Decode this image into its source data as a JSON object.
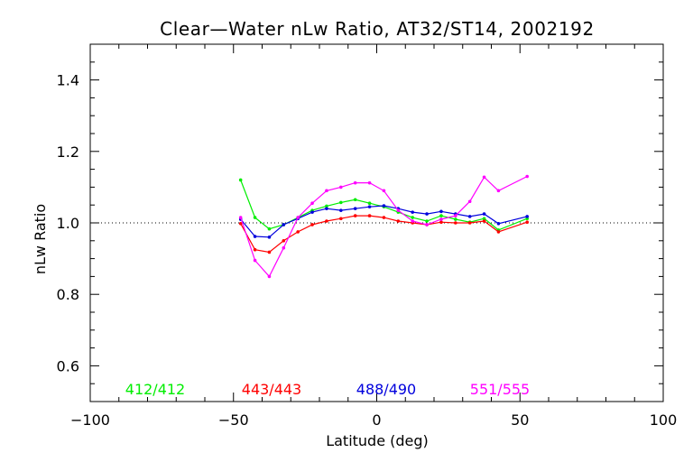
{
  "chart_data": {
    "type": "line",
    "title": "Clear—Water nLw Ratio, AT32/ST14, 2002192",
    "xlabel": "Latitude (deg)",
    "ylabel": "nLw Ratio",
    "xlim": [
      -100,
      100
    ],
    "ylim": [
      0.5,
      1.5
    ],
    "xticks": [
      -100,
      -50,
      0,
      50,
      100
    ],
    "xtick_labels": [
      "−100",
      "−50",
      "0",
      "50",
      "100"
    ],
    "yticks": [
      0.6,
      0.8,
      1.0,
      1.2,
      1.4
    ],
    "ytick_labels": [
      "0.6",
      "0.8",
      "1.0",
      "1.2",
      "1.4"
    ],
    "reference_line": 1.0,
    "grid": false,
    "legend_position": "bottom",
    "series": [
      {
        "name": "412/412",
        "color": "#00ee00",
        "x": [
          -47.5,
          -42.5,
          -37.5,
          -32.5,
          -27.5,
          -22.5,
          -17.5,
          -12.5,
          -7.5,
          -2.5,
          2.5,
          7.5,
          12.5,
          17.5,
          22.5,
          27.5,
          32.5,
          37.5,
          42.5,
          52.5
        ],
        "y": [
          1.12,
          1.015,
          0.983,
          0.995,
          1.015,
          1.035,
          1.047,
          1.057,
          1.065,
          1.055,
          1.045,
          1.03,
          1.015,
          1.005,
          1.02,
          1.01,
          1.002,
          1.012,
          0.98,
          1.012
        ]
      },
      {
        "name": "443/443",
        "color": "#ff0000",
        "x": [
          -47.5,
          -42.5,
          -37.5,
          -32.5,
          -27.5,
          -22.5,
          -17.5,
          -12.5,
          -7.5,
          -2.5,
          2.5,
          7.5,
          12.5,
          17.5,
          22.5,
          27.5,
          32.5,
          37.5,
          42.5,
          52.5
        ],
        "y": [
          0.998,
          0.925,
          0.918,
          0.95,
          0.975,
          0.995,
          1.005,
          1.012,
          1.02,
          1.02,
          1.015,
          1.005,
          1.0,
          0.995,
          1.002,
          1.0,
          1.0,
          1.005,
          0.975,
          1.002
        ]
      },
      {
        "name": "488/490",
        "color": "#0000dd",
        "x": [
          -47.5,
          -42.5,
          -37.5,
          -32.5,
          -27.5,
          -22.5,
          -17.5,
          -12.5,
          -7.5,
          -2.5,
          2.5,
          7.5,
          12.5,
          17.5,
          22.5,
          27.5,
          32.5,
          37.5,
          42.5,
          52.5
        ],
        "y": [
          1.01,
          0.962,
          0.96,
          0.995,
          1.012,
          1.03,
          1.04,
          1.035,
          1.04,
          1.045,
          1.048,
          1.04,
          1.03,
          1.025,
          1.032,
          1.025,
          1.018,
          1.025,
          0.998,
          1.018
        ]
      },
      {
        "name": "551/555",
        "color": "#ff00ff",
        "x": [
          -47.5,
          -42.5,
          -37.5,
          -32.5,
          -27.5,
          -22.5,
          -17.5,
          -12.5,
          -7.5,
          -2.5,
          2.5,
          7.5,
          12.5,
          17.5,
          22.5,
          27.5,
          32.5,
          37.5,
          42.5,
          52.5
        ],
        "y": [
          1.015,
          0.895,
          0.85,
          0.93,
          1.015,
          1.055,
          1.09,
          1.1,
          1.112,
          1.112,
          1.09,
          1.035,
          1.005,
          0.995,
          1.01,
          1.02,
          1.06,
          1.128,
          1.09,
          1.13
        ]
      }
    ]
  }
}
